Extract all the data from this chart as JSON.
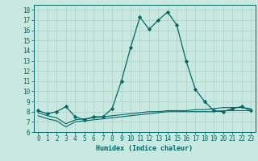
{
  "title": "",
  "xlabel": "Humidex (Indice chaleur)",
  "ylabel": "",
  "bg_color": "#c8e8e0",
  "grid_color": "#a8d0c8",
  "line_color": "#006868",
  "xlim": [
    -0.5,
    23.5
  ],
  "ylim": [
    6,
    18.5
  ],
  "yticks": [
    6,
    7,
    8,
    9,
    10,
    11,
    12,
    13,
    14,
    15,
    16,
    17,
    18
  ],
  "xticks": [
    0,
    1,
    2,
    3,
    4,
    5,
    6,
    7,
    8,
    9,
    10,
    11,
    12,
    13,
    14,
    15,
    16,
    17,
    18,
    19,
    20,
    21,
    22,
    23
  ],
  "main_x": [
    0,
    1,
    2,
    3,
    4,
    5,
    6,
    7,
    8,
    9,
    10,
    11,
    12,
    13,
    14,
    15,
    16,
    17,
    18,
    19,
    20,
    21,
    22,
    23
  ],
  "main_y": [
    8.1,
    7.8,
    8.0,
    8.5,
    7.5,
    7.2,
    7.5,
    7.5,
    8.3,
    11.0,
    14.3,
    17.3,
    16.1,
    17.0,
    17.8,
    16.5,
    13.0,
    10.2,
    9.0,
    8.1,
    8.0,
    8.3,
    8.5,
    8.1
  ],
  "line2_x": [
    0,
    1,
    2,
    3,
    4,
    5,
    6,
    7,
    8,
    9,
    10,
    11,
    12,
    13,
    14,
    15,
    16,
    17,
    18,
    19,
    20,
    21,
    22,
    23
  ],
  "line2_y": [
    7.6,
    7.3,
    7.1,
    6.5,
    7.0,
    7.1,
    7.2,
    7.3,
    7.4,
    7.5,
    7.6,
    7.7,
    7.8,
    7.9,
    8.0,
    8.0,
    8.0,
    8.0,
    8.0,
    8.0,
    8.1,
    8.1,
    8.1,
    8.1
  ],
  "line3_x": [
    0,
    1,
    2,
    3,
    4,
    5,
    6,
    7,
    8,
    9,
    10,
    11,
    12,
    13,
    14,
    15,
    16,
    17,
    18,
    19,
    20,
    21,
    22,
    23
  ],
  "line3_y": [
    7.9,
    7.6,
    7.4,
    6.8,
    7.2,
    7.3,
    7.4,
    7.5,
    7.6,
    7.7,
    7.8,
    7.9,
    8.0,
    8.0,
    8.1,
    8.1,
    8.1,
    8.2,
    8.2,
    8.3,
    8.4,
    8.4,
    8.4,
    8.3
  ],
  "marker_style": "D",
  "marker_size": 2.2,
  "line_width": 0.9,
  "tick_fontsize": 5.5,
  "xlabel_fontsize": 6.0
}
